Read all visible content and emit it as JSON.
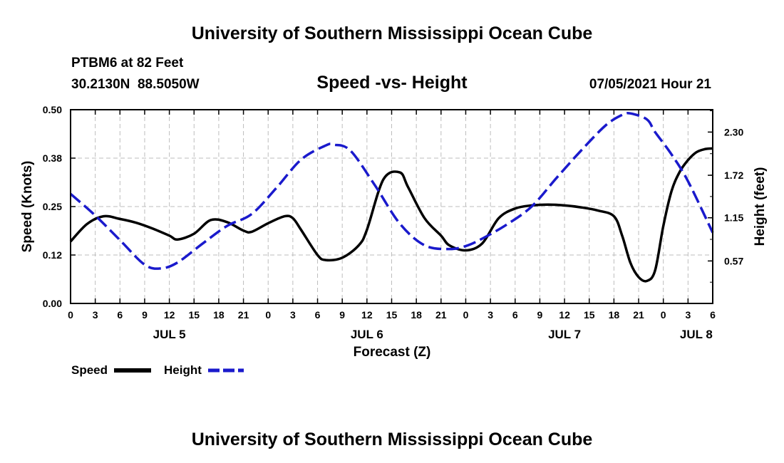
{
  "page": {
    "title_top": "University of Southern Mississippi Ocean Cube",
    "title_bottom": "University of Southern Mississippi Ocean Cube",
    "station": "PTBM6 at 82 Feet",
    "coords": "30.2130N  88.5050W",
    "timestamp": "07/05/2021 Hour 21"
  },
  "chart_data": {
    "type": "line",
    "title": "Speed -vs- Height",
    "xlabel": "Forecast (Z)",
    "ylabel_left": "Speed (Knots)",
    "ylabel_right": "Height (feet)",
    "x_range_hours": [
      0,
      78
    ],
    "y_left_range": [
      0,
      0.5
    ],
    "y_right_range": [
      0.0,
      2.6
    ],
    "x_tick_hours": [
      0,
      3,
      6,
      9,
      12,
      15,
      18,
      21,
      24,
      27,
      30,
      33,
      36,
      39,
      42,
      45,
      48,
      51,
      54,
      57,
      60,
      63,
      66,
      69,
      72,
      75,
      78
    ],
    "x_tick_labels": [
      "0",
      "3",
      "6",
      "9",
      "12",
      "15",
      "18",
      "21",
      "0",
      "3",
      "6",
      "9",
      "12",
      "15",
      "18",
      "21",
      "0",
      "3",
      "6",
      "9",
      "12",
      "15",
      "18",
      "21",
      "0",
      "3",
      "6"
    ],
    "day_labels": [
      {
        "label": "JUL 5",
        "hour": 12
      },
      {
        "label": "JUL 6",
        "hour": 36
      },
      {
        "label": "JUL 7",
        "hour": 60
      },
      {
        "label": "JUL 8",
        "hour": 76
      }
    ],
    "y_left_ticks": [
      0.0,
      0.125,
      0.25,
      0.375,
      0.5
    ],
    "y_left_tick_labels": [
      "0.00",
      "0.12",
      "0.25",
      "0.38",
      "0.50"
    ],
    "y_right_ticks": [
      0.57,
      1.15,
      1.72,
      2.3
    ],
    "y_right_tick_labels": [
      "0.57",
      "1.15",
      "1.72",
      "2.30"
    ],
    "grid": true,
    "legend_position": "bottom-left",
    "series": [
      {
        "name": "Speed",
        "axis": "left",
        "color": "#000000",
        "dash": "solid",
        "x": [
          0,
          2,
          4,
          6,
          8,
          10,
          12,
          13,
          15,
          17,
          19,
          21,
          22,
          24,
          26,
          27,
          28,
          30,
          31,
          33,
          35,
          36,
          38,
          40,
          41,
          43,
          45,
          46,
          48,
          50,
          52,
          54,
          56,
          58,
          60,
          62,
          64,
          66,
          67,
          68,
          69,
          70,
          71,
          72,
          73,
          74,
          75,
          76,
          77,
          78
        ],
        "y": [
          0.16,
          0.205,
          0.225,
          0.218,
          0.208,
          0.193,
          0.175,
          0.165,
          0.18,
          0.215,
          0.21,
          0.188,
          0.185,
          0.207,
          0.225,
          0.22,
          0.19,
          0.125,
          0.112,
          0.118,
          0.15,
          0.19,
          0.32,
          0.338,
          0.3,
          0.22,
          0.175,
          0.15,
          0.137,
          0.155,
          0.22,
          0.245,
          0.253,
          0.255,
          0.253,
          0.248,
          0.24,
          0.225,
          0.175,
          0.105,
          0.068,
          0.058,
          0.085,
          0.2,
          0.29,
          0.34,
          0.37,
          0.39,
          0.398,
          0.4
        ]
      },
      {
        "name": "Height",
        "axis": "right",
        "color": "#1a1acc",
        "dash": "dashed",
        "x": [
          0,
          3,
          6,
          9,
          11,
          13,
          16,
          19,
          22,
          25,
          28,
          31,
          32,
          34,
          37,
          40,
          43,
          46,
          48,
          50,
          53,
          56,
          59,
          62,
          65,
          67,
          68,
          70,
          71,
          73,
          75,
          78
        ],
        "y": [
          1.47,
          1.18,
          0.85,
          0.52,
          0.47,
          0.55,
          0.8,
          1.04,
          1.2,
          1.55,
          1.93,
          2.12,
          2.13,
          2.05,
          1.58,
          1.07,
          0.78,
          0.73,
          0.77,
          0.87,
          1.06,
          1.3,
          1.68,
          2.05,
          2.39,
          2.53,
          2.55,
          2.47,
          2.3,
          2.0,
          1.64,
          0.95
        ]
      }
    ]
  }
}
